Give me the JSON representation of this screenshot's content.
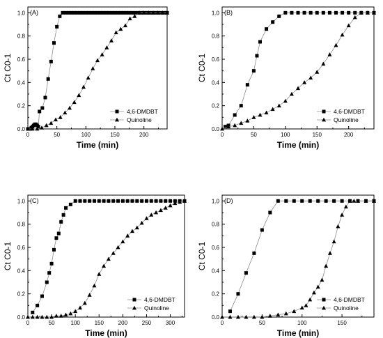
{
  "colors": {
    "marker": "#000000",
    "line": "#8c8c8c",
    "axis": "#000000",
    "background": "#ffffff"
  },
  "chart_data": [
    {
      "type": "scatter",
      "panel_label": "(A)",
      "xlabel": "Time (min)",
      "ylabel": "Ct C0-1",
      "xlim": [
        0,
        240
      ],
      "ylim": [
        0,
        1.05
      ],
      "xticks": [
        0,
        50,
        100,
        150,
        200
      ],
      "yticks": [
        "0.0",
        "0.2",
        "0.4",
        "0.6",
        "0.8",
        "1.0"
      ],
      "legend": "bottom-right",
      "series": [
        {
          "name": "4,6-DMDBT",
          "marker": "square",
          "x": [
            0,
            2,
            4,
            6,
            8,
            10,
            12,
            14,
            16,
            18,
            20,
            25,
            30,
            35,
            40,
            45,
            50,
            55,
            60,
            65,
            70,
            75,
            80,
            85,
            90,
            95,
            100,
            105,
            110,
            115,
            120,
            125,
            130,
            135,
            140,
            145,
            150,
            155,
            160,
            165,
            170,
            175,
            180,
            185,
            190,
            195,
            200,
            205,
            210,
            215,
            220,
            225,
            230,
            235,
            240
          ],
          "y": [
            0,
            0,
            0,
            0.01,
            0.02,
            0.03,
            0.04,
            0.04,
            0.03,
            0.02,
            0.15,
            0.18,
            0.27,
            0.43,
            0.58,
            0.74,
            0.88,
            0.97,
            1,
            1,
            1,
            1,
            1,
            1,
            1,
            1,
            1,
            1,
            1,
            1,
            1,
            1,
            1,
            1,
            1,
            1,
            1,
            1,
            1,
            1,
            1,
            1,
            1,
            1,
            1,
            1,
            1,
            1,
            1,
            1,
            1,
            1,
            1,
            1,
            1
          ]
        },
        {
          "name": "Quinoline",
          "marker": "triangle",
          "x": [
            0,
            8,
            16,
            24,
            32,
            40,
            48,
            56,
            64,
            72,
            80,
            88,
            96,
            104,
            112,
            120,
            128,
            136,
            144,
            152,
            160,
            168,
            176,
            184,
            192,
            200,
            208,
            216,
            224,
            232,
            240
          ],
          "y": [
            0,
            0,
            0,
            0.01,
            0.03,
            0.05,
            0.08,
            0.1,
            0.14,
            0.18,
            0.23,
            0.29,
            0.36,
            0.44,
            0.52,
            0.59,
            0.64,
            0.7,
            0.76,
            0.83,
            0.86,
            0.89,
            0.95,
            0.97,
            1,
            1,
            1,
            1,
            1,
            1,
            1
          ]
        }
      ]
    },
    {
      "type": "scatter",
      "panel_label": "(B)",
      "xlabel": "Time (min)",
      "ylabel": "Ct C0-1",
      "xlim": [
        0,
        240
      ],
      "ylim": [
        0,
        1.05
      ],
      "xticks": [
        0,
        50,
        100,
        150,
        200
      ],
      "yticks": [
        "0.0",
        "0.2",
        "0.4",
        "0.6",
        "0.8",
        "1.0"
      ],
      "legend": "bottom-right",
      "series": [
        {
          "name": "4,6-DMDBT",
          "marker": "square",
          "x": [
            5,
            10,
            20,
            30,
            40,
            50,
            55,
            60,
            70,
            80,
            90,
            100,
            110,
            120,
            130,
            140,
            150,
            160,
            170,
            180,
            190,
            200,
            210,
            220,
            230,
            240
          ],
          "y": [
            0.02,
            0.03,
            0.12,
            0.2,
            0.38,
            0.5,
            0.63,
            0.75,
            0.86,
            0.92,
            0.97,
            1,
            1,
            1,
            1,
            1,
            1,
            1,
            1,
            1,
            1,
            1,
            1,
            1,
            1,
            1
          ]
        },
        {
          "name": "Quinoline",
          "marker": "triangle",
          "x": [
            0,
            10,
            20,
            30,
            40,
            50,
            60,
            70,
            80,
            90,
            100,
            110,
            120,
            130,
            140,
            150,
            160,
            170,
            180,
            190,
            200,
            210,
            220,
            230,
            240
          ],
          "y": [
            0,
            0.02,
            0.03,
            0.05,
            0.07,
            0.1,
            0.12,
            0.14,
            0.17,
            0.2,
            0.24,
            0.3,
            0.35,
            0.4,
            0.44,
            0.49,
            0.56,
            0.64,
            0.72,
            0.81,
            0.89,
            0.96,
            1,
            1,
            1
          ]
        }
      ]
    },
    {
      "type": "scatter",
      "panel_label": "(C)",
      "xlabel": "Time (min)",
      "ylabel": "Ct C0-1",
      "xlim": [
        0,
        330
      ],
      "ylim": [
        0,
        1.05
      ],
      "xticks": [
        0,
        50,
        100,
        150,
        200,
        250,
        300
      ],
      "yticks": [
        "0.0",
        "0.2",
        "0.4",
        "0.6",
        "0.8",
        "1.0"
      ],
      "legend": "bottom-right",
      "series": [
        {
          "name": "4,6-DMDBT",
          "marker": "square",
          "x": [
            10,
            20,
            30,
            40,
            45,
            50,
            55,
            60,
            65,
            70,
            75,
            80,
            90,
            100,
            110,
            120,
            130,
            140,
            150,
            160,
            170,
            180,
            190,
            200,
            210,
            220,
            230,
            240,
            250,
            260,
            270,
            280,
            290,
            300,
            310,
            320,
            330
          ],
          "y": [
            0.04,
            0.1,
            0.18,
            0.3,
            0.38,
            0.46,
            0.58,
            0.68,
            0.72,
            0.82,
            0.88,
            0.94,
            0.97,
            1,
            1,
            1,
            1,
            1,
            1,
            1,
            1,
            1,
            1,
            1,
            1,
            1,
            1,
            1,
            1,
            1,
            1,
            1,
            1,
            1,
            1,
            1,
            1
          ]
        },
        {
          "name": "Quinoline",
          "marker": "triangle",
          "x": [
            0,
            10,
            20,
            30,
            40,
            50,
            60,
            70,
            80,
            90,
            100,
            110,
            120,
            130,
            140,
            150,
            160,
            170,
            180,
            190,
            200,
            210,
            220,
            230,
            240,
            250,
            260,
            270,
            280,
            290,
            300,
            310,
            320,
            330
          ],
          "y": [
            0,
            0,
            0,
            0,
            0,
            0,
            0.01,
            0.01,
            0.02,
            0.03,
            0.05,
            0.08,
            0.12,
            0.19,
            0.27,
            0.37,
            0.44,
            0.5,
            0.55,
            0.6,
            0.65,
            0.7,
            0.74,
            0.77,
            0.81,
            0.85,
            0.88,
            0.9,
            0.92,
            0.94,
            0.96,
            0.98,
            0.99,
            1
          ]
        }
      ]
    },
    {
      "type": "scatter",
      "panel_label": "(D)",
      "xlabel": "Time (min)",
      "ylabel": "Ct C0-1",
      "xlim": [
        0,
        190
      ],
      "ylim": [
        0,
        1.05
      ],
      "xticks": [
        0,
        50,
        100,
        150
      ],
      "yticks": [
        "0.0",
        "0.2",
        "0.4",
        "0.6",
        "0.8",
        "1.0"
      ],
      "legend": "bottom-right",
      "series": [
        {
          "name": "4,6-DMDBT",
          "marker": "square",
          "x": [
            10,
            20,
            30,
            40,
            50,
            60,
            70,
            80,
            90,
            100,
            110,
            120,
            130,
            140,
            150,
            160,
            170,
            180,
            190
          ],
          "y": [
            0.05,
            0.2,
            0.38,
            0.55,
            0.75,
            0.9,
            1,
            1,
            1,
            1,
            1,
            1,
            1,
            1,
            1,
            1,
            1,
            1,
            1
          ]
        },
        {
          "name": "Quinoline",
          "marker": "triangle",
          "x": [
            0,
            10,
            20,
            30,
            40,
            50,
            60,
            70,
            80,
            90,
            100,
            105,
            110,
            115,
            120,
            125,
            130,
            135,
            140,
            145,
            150,
            155,
            160,
            165,
            170,
            180,
            190
          ],
          "y": [
            0,
            0,
            0,
            0,
            0,
            0,
            0.01,
            0.02,
            0.03,
            0.05,
            0.08,
            0.1,
            0.15,
            0.21,
            0.26,
            0.32,
            0.44,
            0.55,
            0.65,
            0.78,
            0.88,
            0.95,
            1,
            1,
            1,
            1,
            1
          ]
        }
      ]
    }
  ]
}
